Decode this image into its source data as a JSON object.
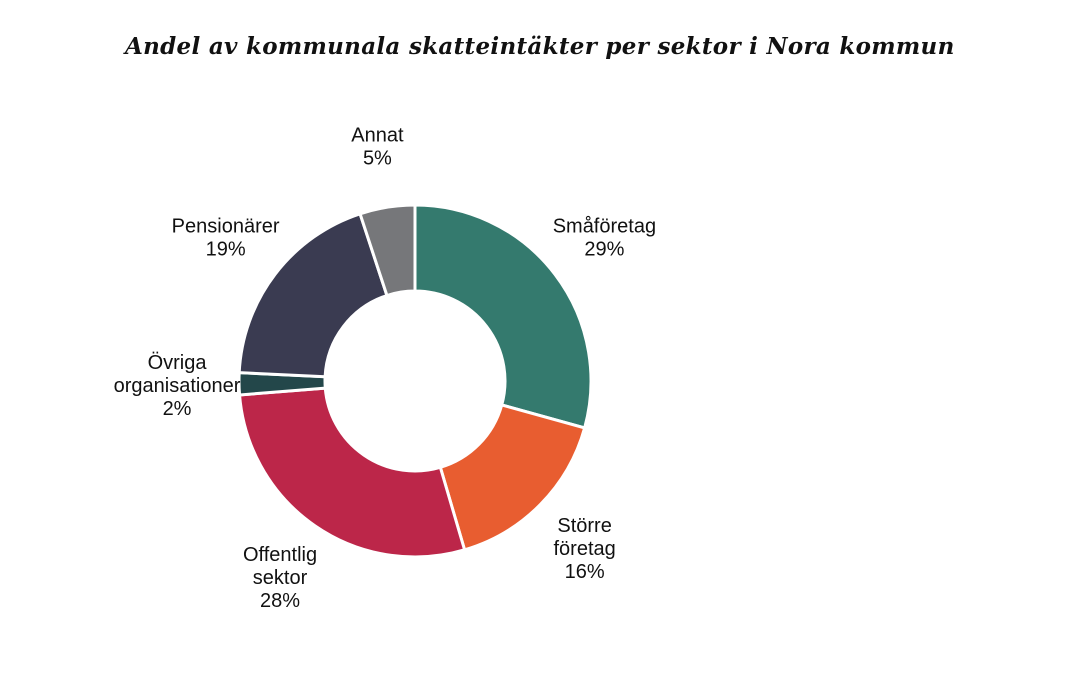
{
  "chart_data": {
    "type": "pie",
    "title": "Andel av kommunala skatteintäkter per sektor i Nora kommun",
    "donut": true,
    "slices": [
      {
        "label_lines": [
          "Småföretag"
        ],
        "value": 29,
        "value_label": "29%",
        "color": "#347A6E"
      },
      {
        "label_lines": [
          "Större",
          "företag"
        ],
        "value": 16,
        "value_label": "16%",
        "color": "#E85D30"
      },
      {
        "label_lines": [
          "Offentlig",
          "sektor"
        ],
        "value": 28,
        "value_label": "28%",
        "color": "#BC2649"
      },
      {
        "label_lines": [
          "Övriga",
          "organisationer"
        ],
        "value": 2,
        "value_label": "2%",
        "color": "#23474A"
      },
      {
        "label_lines": [
          "Pensionärer"
        ],
        "value": 19,
        "value_label": "19%",
        "color": "#3A3B51"
      },
      {
        "label_lines": [
          "Annat"
        ],
        "value": 5,
        "value_label": "5%",
        "color": "#76777A"
      }
    ]
  }
}
